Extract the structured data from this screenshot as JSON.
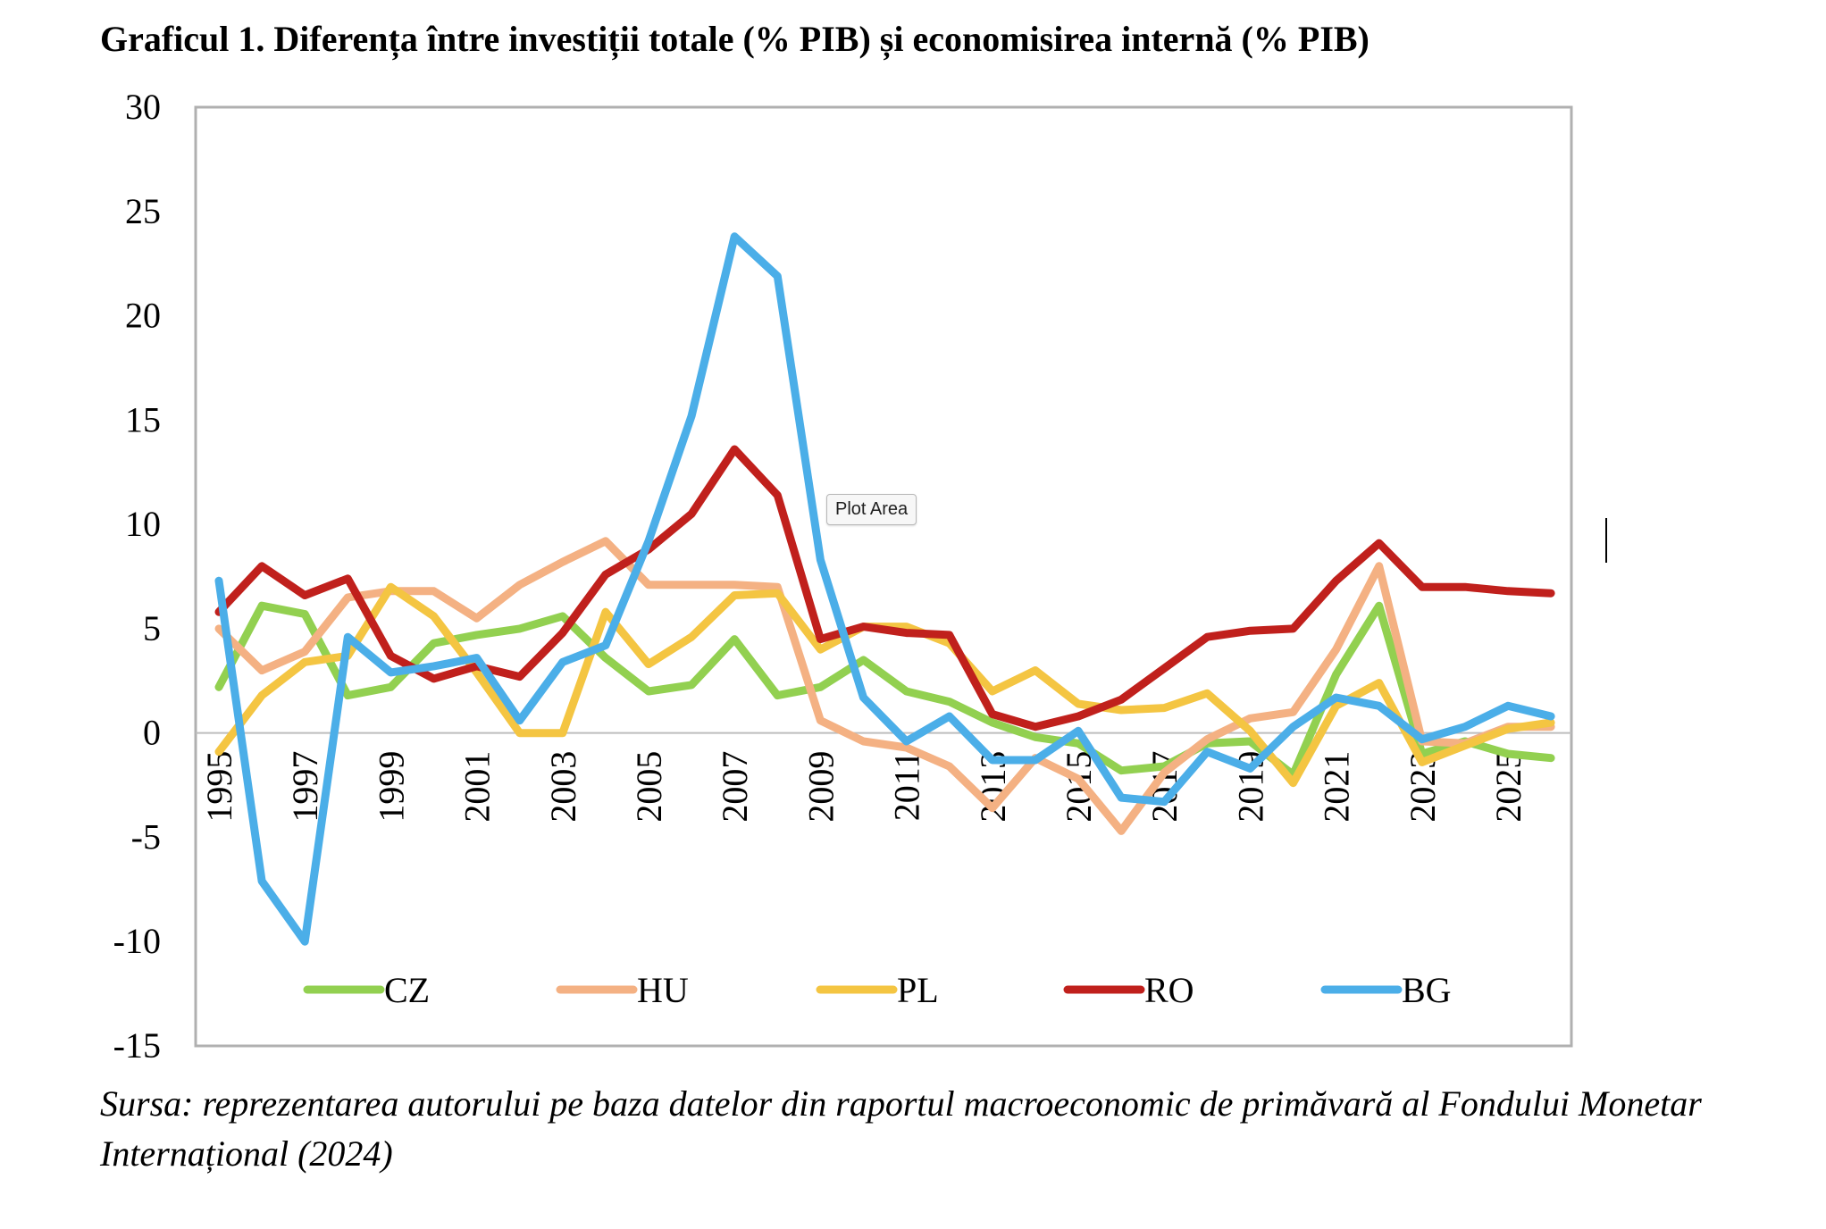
{
  "title": "Graficul 1. Diferența între investiții totale (% PIB) și economisirea internă (% PIB)",
  "tooltip": "Plot Area",
  "source": "Sursa: reprezentarea autorului pe baza datelor din raportul macroeconomic de primăvară al Fondului Monetar Internațional (2024)",
  "chart_data": {
    "type": "line",
    "title": "Graficul 1. Diferența între investiții totale (% PIB) și economisirea internă (% PIB)",
    "xlabel": "",
    "ylabel": "",
    "ylim": [
      -15,
      30
    ],
    "yticks": [
      30,
      25,
      20,
      15,
      10,
      5,
      0,
      -5,
      -10,
      -15
    ],
    "x": [
      1995,
      1996,
      1997,
      1998,
      1999,
      2000,
      2001,
      2002,
      2003,
      2004,
      2005,
      2006,
      2007,
      2008,
      2009,
      2010,
      2011,
      2012,
      2013,
      2014,
      2015,
      2016,
      2017,
      2018,
      2019,
      2020,
      2021,
      2022,
      2023,
      2024,
      2025,
      2026
    ],
    "xtick_labels": [
      "1995",
      "1997",
      "1999",
      "2001",
      "2003",
      "2005",
      "2007",
      "2009",
      "2011",
      "2013",
      "2015",
      "2017",
      "2019",
      "2021",
      "2023",
      "2025"
    ],
    "grid": false,
    "legend_position": "bottom",
    "series": [
      {
        "name": "CZ",
        "color": "#92d050",
        "values": [
          2.2,
          6.1,
          5.7,
          1.8,
          2.2,
          4.3,
          4.7,
          5.0,
          5.6,
          3.6,
          2.0,
          2.3,
          4.5,
          1.8,
          2.2,
          3.5,
          2.0,
          1.5,
          0.5,
          -0.2,
          -0.5,
          -1.8,
          -1.6,
          -0.5,
          -0.4,
          -2.0,
          2.8,
          6.1,
          -1.0,
          -0.4,
          -1.0,
          -1.2
        ]
      },
      {
        "name": "HU",
        "color": "#f4b183",
        "values": [
          5.0,
          3.0,
          3.9,
          6.5,
          6.8,
          6.8,
          5.5,
          7.1,
          8.2,
          9.2,
          7.1,
          7.1,
          7.1,
          7.0,
          0.6,
          -0.4,
          -0.7,
          -1.6,
          -3.6,
          -1.2,
          -2.2,
          -4.7,
          -1.9,
          -0.3,
          0.7,
          1.0,
          4.0,
          8.0,
          -0.4,
          -0.5,
          0.3,
          0.3
        ]
      },
      {
        "name": "PL",
        "color": "#f4c542",
        "values": [
          -0.9,
          1.8,
          3.4,
          3.7,
          7.0,
          5.6,
          2.9,
          0.0,
          0.0,
          5.8,
          3.3,
          4.6,
          6.6,
          6.7,
          4.0,
          5.1,
          5.1,
          4.3,
          2.0,
          3.0,
          1.4,
          1.1,
          1.2,
          1.9,
          0.1,
          -2.4,
          1.3,
          2.4,
          -1.4,
          -0.6,
          0.2,
          0.5
        ]
      },
      {
        "name": "RO",
        "color": "#c0201c",
        "values": [
          5.8,
          8.0,
          6.6,
          7.4,
          3.7,
          2.6,
          3.2,
          2.7,
          4.8,
          7.6,
          8.8,
          10.5,
          13.6,
          11.4,
          4.5,
          5.1,
          4.8,
          4.7,
          0.9,
          0.3,
          0.8,
          1.6,
          3.1,
          4.6,
          4.9,
          5.0,
          7.3,
          9.1,
          7.0,
          7.0,
          6.8,
          6.7
        ]
      },
      {
        "name": "BG",
        "color": "#4baee8",
        "values": [
          7.3,
          -7.1,
          -10.0,
          4.6,
          2.9,
          3.2,
          3.6,
          0.6,
          3.4,
          4.2,
          9.2,
          15.2,
          23.8,
          21.9,
          8.3,
          1.7,
          -0.4,
          0.8,
          -1.3,
          -1.3,
          0.1,
          -3.1,
          -3.3,
          -0.9,
          -1.7,
          0.3,
          1.7,
          1.3,
          -0.3,
          0.3,
          1.3,
          0.8
        ]
      }
    ]
  }
}
